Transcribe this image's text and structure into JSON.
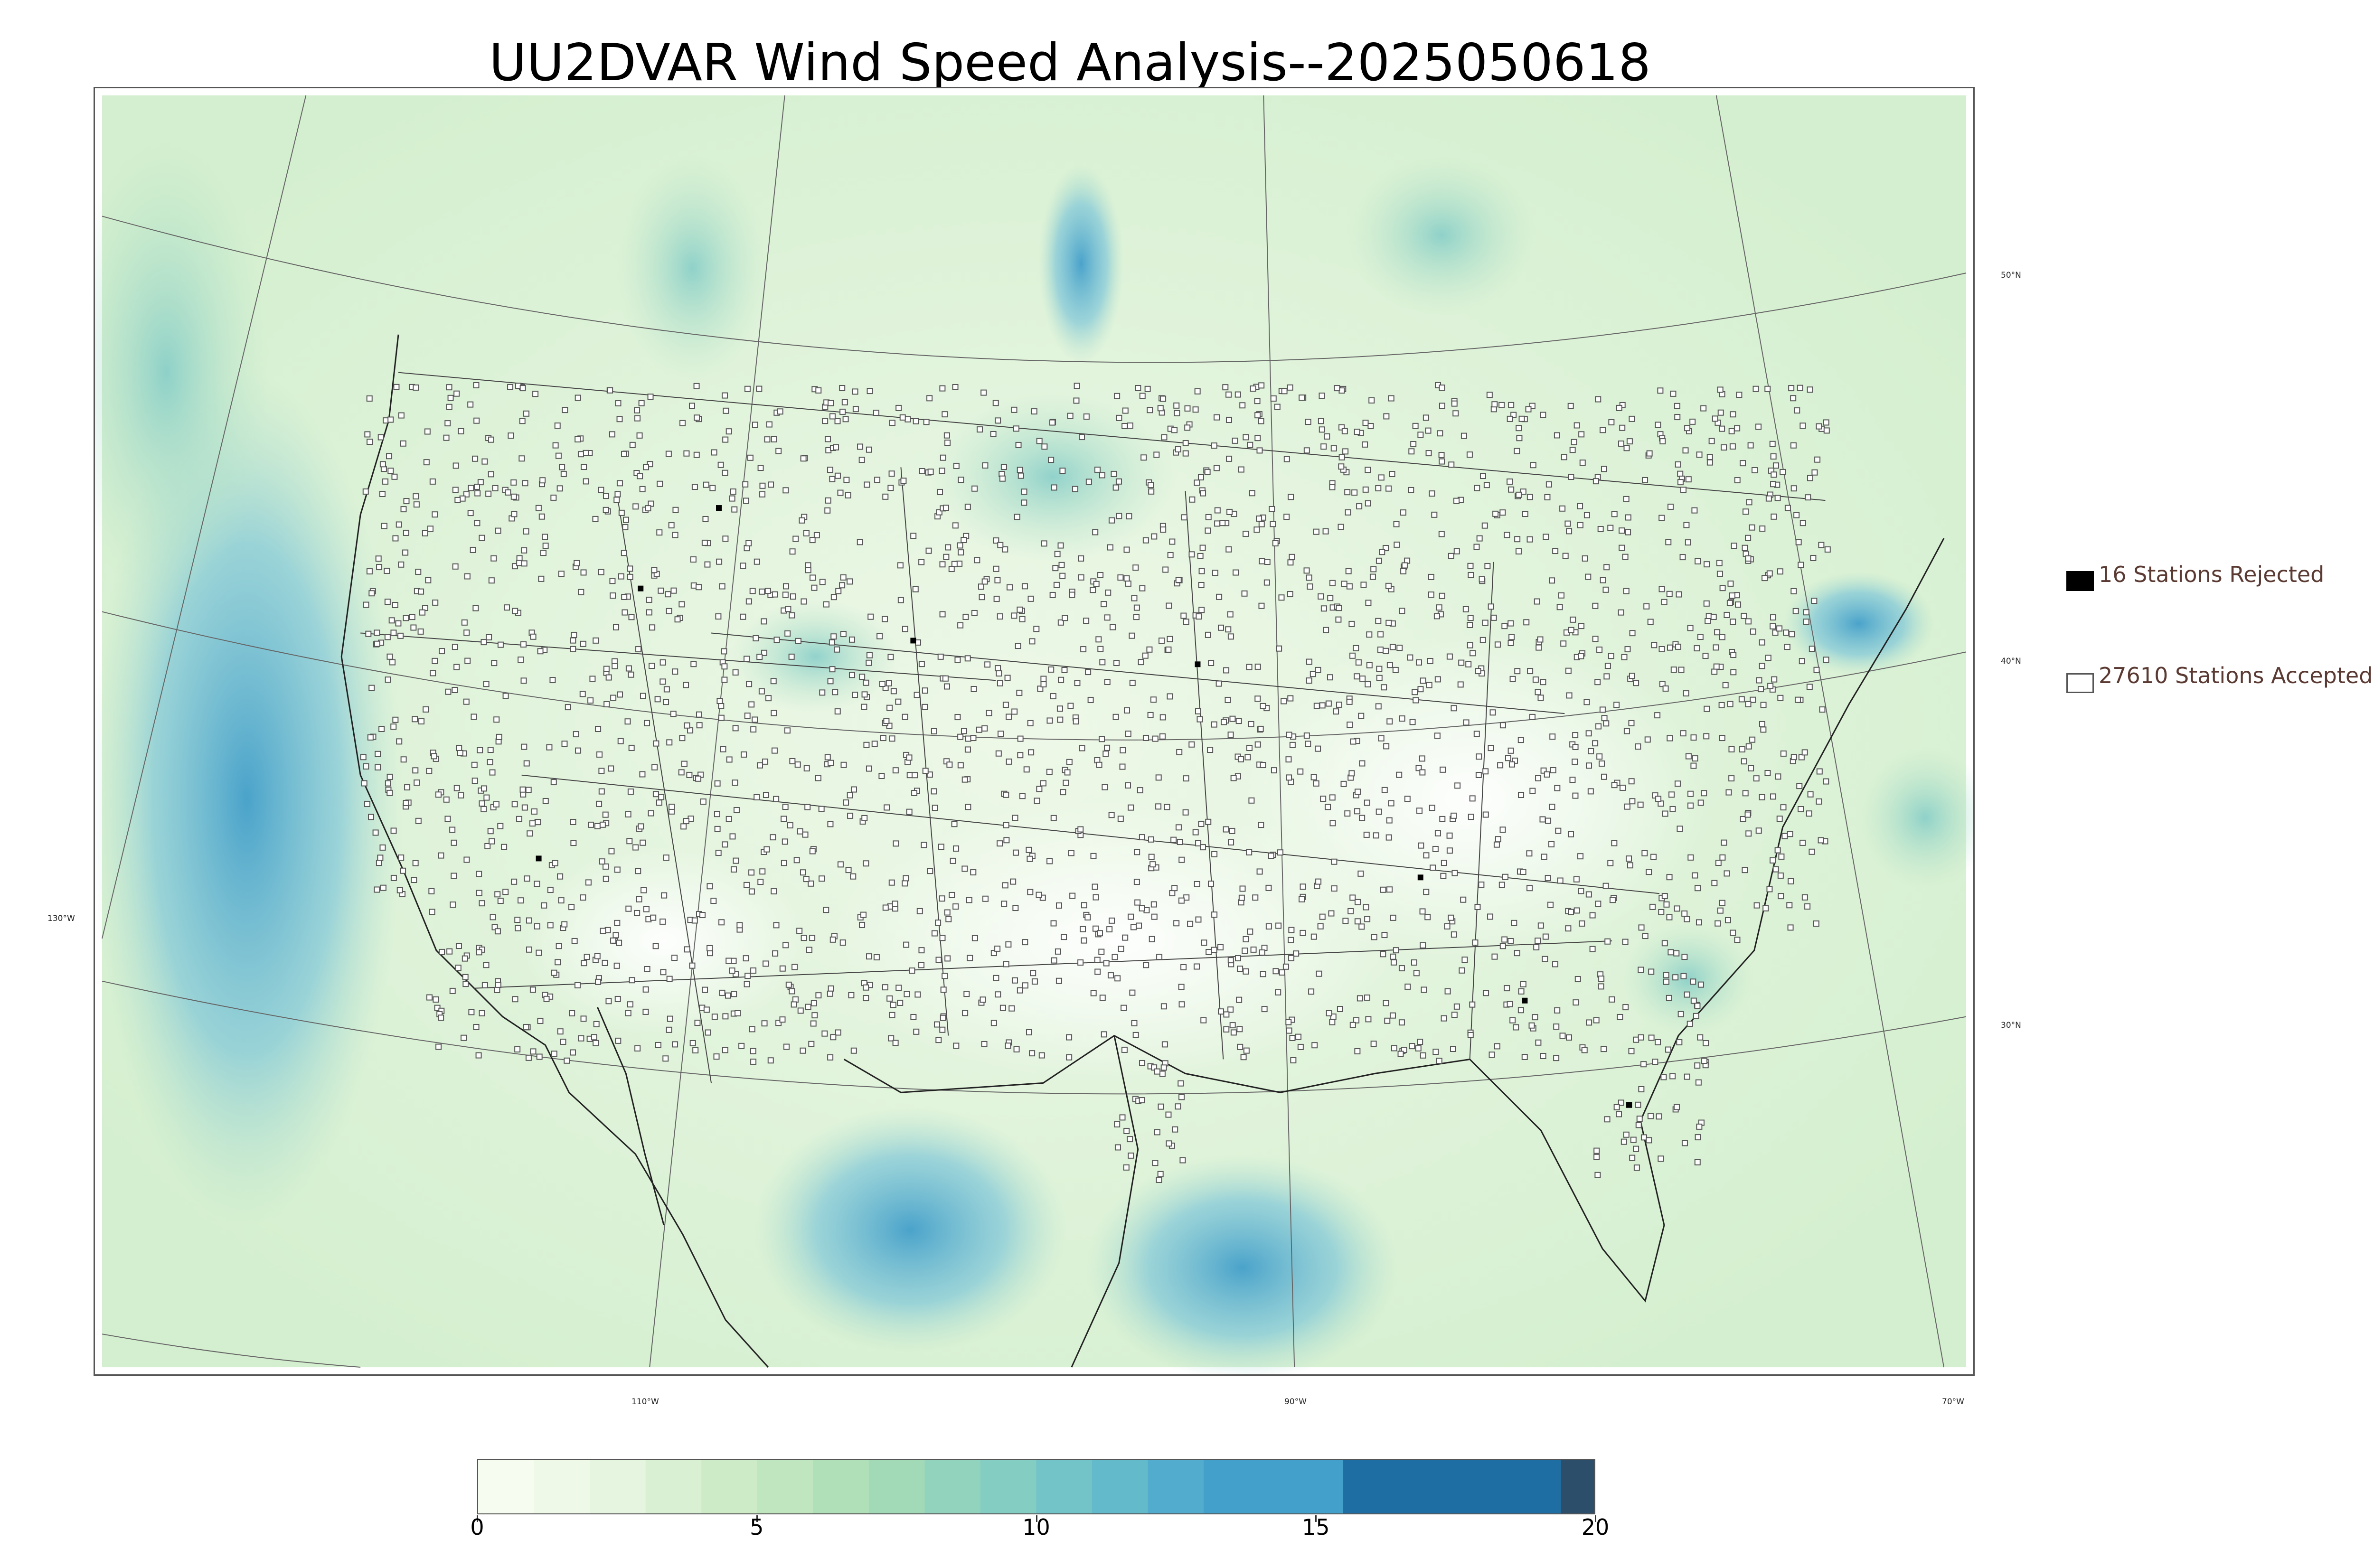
{
  "title": "UU2DVAR Wind Speed Analysis--2025050618",
  "map": {
    "colors": {
      "land_light": "#eef8e8",
      "land_mid": "#c8ebc4",
      "ocean_mid": "#a8dcc8",
      "ocean_blue": "#6fbfd8",
      "blue_strong": "#3a9ac9"
    },
    "grid_labels": [
      {
        "id": "lat-50",
        "text": "50°N"
      },
      {
        "id": "lat-40",
        "text": "40°N"
      },
      {
        "id": "lat-30",
        "text": "30°N"
      },
      {
        "id": "lon-130",
        "text": "130°W"
      },
      {
        "id": "lon-110",
        "text": "110°W"
      },
      {
        "id": "lon-90",
        "text": "90°W"
      },
      {
        "id": "lon-70",
        "text": "70°W"
      }
    ]
  },
  "legend": {
    "rejected": {
      "label": "16 Stations Rejected",
      "color": "#000000"
    },
    "accepted": {
      "label": "27610 Stations Accepted",
      "color": "#ffffff"
    }
  },
  "colorbar": {
    "min": 0,
    "max": 20,
    "ticks": [
      "0",
      "5",
      "10",
      "15",
      "20"
    ],
    "bins": [
      {
        "from": 0,
        "to": 1,
        "color": "#f7fcf0"
      },
      {
        "from": 1,
        "to": 2,
        "color": "#eff9e8"
      },
      {
        "from": 2,
        "to": 3,
        "color": "#e5f5df"
      },
      {
        "from": 3,
        "to": 4,
        "color": "#d9f0d3"
      },
      {
        "from": 4,
        "to": 5,
        "color": "#cdebc6"
      },
      {
        "from": 5,
        "to": 6,
        "color": "#bfe6be"
      },
      {
        "from": 6,
        "to": 7,
        "color": "#b0e0b8"
      },
      {
        "from": 7,
        "to": 8,
        "color": "#a2dab8"
      },
      {
        "from": 8,
        "to": 9,
        "color": "#92d3be"
      },
      {
        "from": 9,
        "to": 10,
        "color": "#83cdc2"
      },
      {
        "from": 10,
        "to": 11,
        "color": "#72c4c8"
      },
      {
        "from": 11,
        "to": 12,
        "color": "#62bacb"
      },
      {
        "from": 12,
        "to": 13,
        "color": "#52accd"
      },
      {
        "from": 13,
        "to": 15.5,
        "color": "#42a0ca"
      },
      {
        "from": 15.5,
        "to": 19.4,
        "color": "#1f6ea3"
      },
      {
        "from": 19.4,
        "to": 20,
        "color": "#2c4e6b"
      }
    ]
  }
}
